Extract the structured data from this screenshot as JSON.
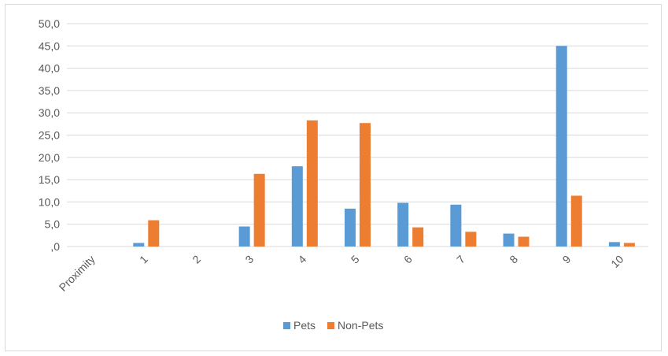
{
  "chart_data": {
    "type": "bar",
    "title": "",
    "xlabel": "",
    "ylabel": "",
    "categories": [
      "Proximity",
      "1",
      "2",
      "3",
      "4",
      "5",
      "6",
      "7",
      "8",
      "9",
      "10"
    ],
    "series": [
      {
        "name": "Pets",
        "color": "#5b9bd5",
        "values": [
          0,
          0.8,
          0,
          4.5,
          18.0,
          8.5,
          9.8,
          9.4,
          2.9,
          45.0,
          1.0
        ]
      },
      {
        "name": "Non-Pets",
        "color": "#ed7d31",
        "values": [
          0,
          5.9,
          0,
          16.3,
          28.3,
          27.7,
          4.3,
          3.3,
          2.2,
          11.4,
          0.8
        ]
      }
    ],
    "ylim": [
      0,
      50
    ],
    "yticks": [
      0,
      5,
      10,
      15,
      20,
      25,
      30,
      35,
      40,
      45,
      50
    ],
    "ytick_labels": [
      ",0",
      "5,0",
      "10,0",
      "15,0",
      "20,0",
      "25,0",
      "30,0",
      "35,0",
      "40,0",
      "45,0",
      "50,0"
    ],
    "grid": true,
    "legend_position": "bottom"
  }
}
